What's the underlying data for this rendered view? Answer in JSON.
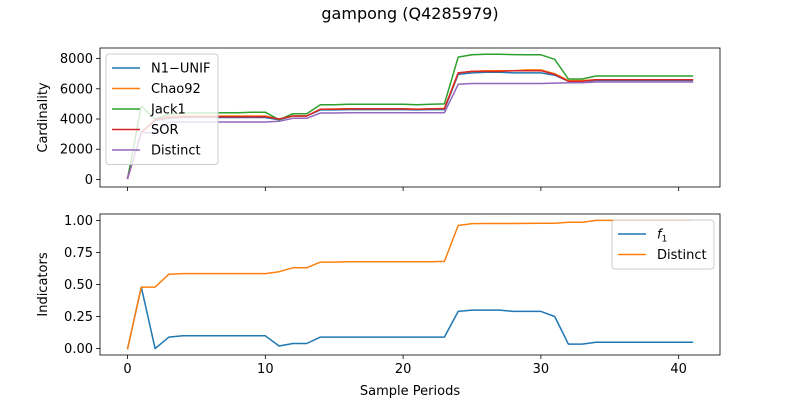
{
  "chart_data": {
    "title": "gampong (Q4285979)",
    "xlabel": "Sample Periods",
    "x": [
      0,
      1,
      2,
      3,
      4,
      5,
      6,
      7,
      8,
      9,
      10,
      11,
      12,
      13,
      14,
      15,
      16,
      17,
      18,
      19,
      20,
      21,
      22,
      23,
      24,
      25,
      26,
      27,
      28,
      29,
      30,
      31,
      32,
      33,
      34,
      35,
      36,
      37,
      38,
      39,
      40,
      41
    ],
    "xlim": [
      -2,
      43
    ],
    "xticks": [
      0,
      10,
      20,
      30,
      40
    ],
    "panels": [
      {
        "type": "line",
        "ylabel": "Cardinality",
        "ylim": [
          -500,
          8700
        ],
        "yticks": [
          0,
          2000,
          4000,
          6000,
          8000
        ],
        "tick_format": "int",
        "legend_position": "upper left",
        "series": [
          {
            "name": "N1−UNIF",
            "color": "#1f77b4",
            "values": [
              80,
              3100,
              3900,
              4050,
              4100,
              4100,
              4100,
              4100,
              4100,
              4100,
              4100,
              3950,
              4200,
              4200,
              4600,
              4600,
              4620,
              4620,
              4620,
              4620,
              4620,
              4600,
              4620,
              4620,
              6950,
              7050,
              7100,
              7100,
              7050,
              7050,
              7050,
              6900,
              6500,
              6500,
              6550,
              6550,
              6550,
              6550,
              6550,
              6550,
              6550,
              6550
            ]
          },
          {
            "name": "Chao92",
            "color": "#ff7f0e",
            "values": [
              80,
              3100,
              3950,
              4150,
              4200,
              4200,
              4200,
              4200,
              4200,
              4200,
              4200,
              4000,
              4200,
              4200,
              4650,
              4660,
              4680,
              4680,
              4680,
              4680,
              4680,
              4650,
              4680,
              4700,
              7050,
              7150,
              7200,
              7200,
              7200,
              7250,
              7250,
              7000,
              6550,
              6550,
              6600,
              6600,
              6600,
              6600,
              6600,
              6600,
              6600,
              6600
            ]
          },
          {
            "name": "Jack1",
            "color": "#2ca02c",
            "values": [
              80,
              4850,
              4000,
              4300,
              4400,
              4400,
              4400,
              4420,
              4420,
              4450,
              4450,
              3950,
              4350,
              4350,
              4950,
              4950,
              4980,
              4980,
              4980,
              4980,
              4980,
              4950,
              4980,
              5000,
              8100,
              8250,
              8280,
              8280,
              8260,
              8250,
              8250,
              7950,
              6650,
              6650,
              6850,
              6850,
              6850,
              6850,
              6850,
              6850,
              6850,
              6850
            ]
          },
          {
            "name": "SOR",
            "color": "#d62728",
            "values": [
              80,
              3100,
              3950,
              4100,
              4150,
              4150,
              4150,
              4150,
              4150,
              4150,
              4150,
              4000,
              4200,
              4200,
              4650,
              4650,
              4670,
              4670,
              4670,
              4670,
              4670,
              4650,
              4670,
              4680,
              7050,
              7150,
              7150,
              7150,
              7200,
              7200,
              7200,
              6950,
              6500,
              6500,
              6600,
              6600,
              6600,
              6600,
              6600,
              6600,
              6600,
              6600
            ]
          },
          {
            "name": "Distinct",
            "color": "#9467bd",
            "values": [
              80,
              3100,
              3100,
              3800,
              3800,
              3800,
              3800,
              3800,
              3800,
              3800,
              3800,
              3850,
              4050,
              4050,
              4400,
              4400,
              4420,
              4420,
              4420,
              4420,
              4420,
              4420,
              4420,
              4420,
              6300,
              6350,
              6350,
              6350,
              6350,
              6350,
              6350,
              6380,
              6400,
              6400,
              6450,
              6450,
              6450,
              6450,
              6450,
              6450,
              6450,
              6450
            ]
          }
        ]
      },
      {
        "type": "line",
        "ylabel": "Indicators",
        "ylim": [
          -0.05,
          1.05
        ],
        "yticks": [
          0.0,
          0.25,
          0.5,
          0.75,
          1.0
        ],
        "tick_format": "2dp",
        "legend_position": "upper right",
        "series": [
          {
            "name": "f1",
            "display_name": "f",
            "subscript": "1",
            "color": "#1f77b4",
            "values": [
              0.0,
              0.48,
              0.0,
              0.09,
              0.1,
              0.1,
              0.1,
              0.1,
              0.1,
              0.1,
              0.1,
              0.02,
              0.04,
              0.04,
              0.09,
              0.09,
              0.09,
              0.09,
              0.09,
              0.09,
              0.09,
              0.09,
              0.09,
              0.09,
              0.29,
              0.3,
              0.3,
              0.3,
              0.29,
              0.29,
              0.29,
              0.25,
              0.035,
              0.035,
              0.05,
              0.05,
              0.05,
              0.05,
              0.05,
              0.05,
              0.05,
              0.05
            ]
          },
          {
            "name": "Distinct",
            "color": "#ff7f0e",
            "values": [
              0.0,
              0.48,
              0.48,
              0.58,
              0.585,
              0.585,
              0.585,
              0.585,
              0.585,
              0.585,
              0.585,
              0.6,
              0.63,
              0.63,
              0.675,
              0.675,
              0.678,
              0.678,
              0.678,
              0.678,
              0.678,
              0.678,
              0.678,
              0.68,
              0.96,
              0.975,
              0.976,
              0.976,
              0.976,
              0.977,
              0.978,
              0.978,
              0.985,
              0.985,
              1.0,
              1.0,
              1.0,
              1.0,
              1.0,
              1.0,
              1.0,
              1.0
            ]
          }
        ]
      }
    ]
  }
}
